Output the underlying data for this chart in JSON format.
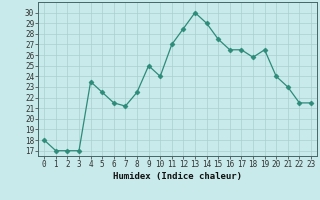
{
  "x": [
    0,
    1,
    2,
    3,
    4,
    5,
    6,
    7,
    8,
    9,
    10,
    11,
    12,
    13,
    14,
    15,
    16,
    17,
    18,
    19,
    20,
    21,
    22,
    23
  ],
  "y": [
    18,
    17,
    17,
    17,
    23.5,
    22.5,
    21.5,
    21.2,
    22.5,
    25,
    24,
    27,
    28.5,
    30,
    29,
    27.5,
    26.5,
    26.5,
    25.8,
    26.5,
    24,
    23,
    21.5,
    21.5
  ],
  "line_color": "#2d8b7a",
  "marker": "D",
  "marker_size": 2.5,
  "bg_color": "#c8eaea",
  "grid_color": "#aacfcf",
  "xlabel": "Humidex (Indice chaleur)",
  "xlim": [
    -0.5,
    23.5
  ],
  "ylim": [
    16.5,
    31
  ],
  "yticks": [
    17,
    18,
    19,
    20,
    21,
    22,
    23,
    24,
    25,
    26,
    27,
    28,
    29,
    30
  ],
  "xtick_labels": [
    "0",
    "1",
    "2",
    "3",
    "4",
    "5",
    "6",
    "7",
    "8",
    "9",
    "10",
    "11",
    "12",
    "13",
    "14",
    "15",
    "16",
    "17",
    "18",
    "19",
    "20",
    "21",
    "22",
    "23"
  ],
  "label_fontsize": 6.5,
  "tick_fontsize": 5.5
}
